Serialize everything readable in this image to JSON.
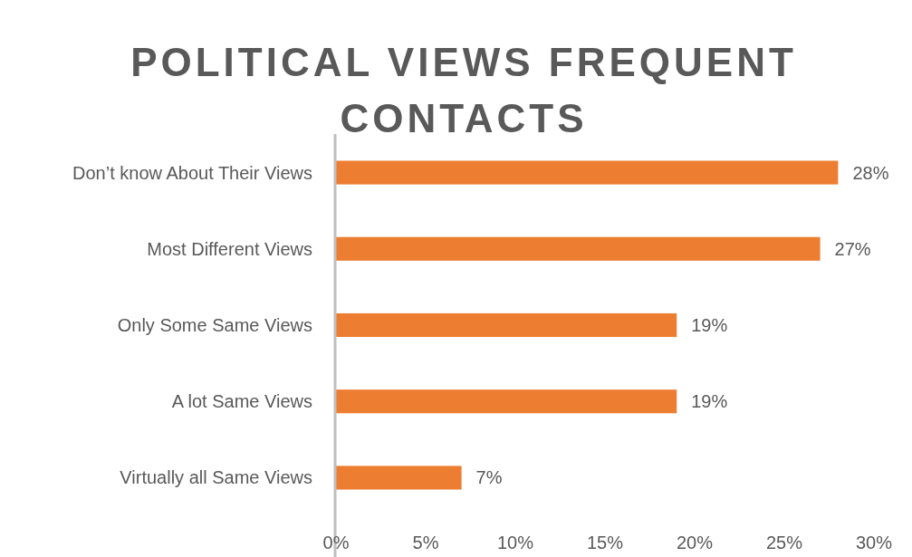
{
  "chart_data": {
    "type": "bar",
    "orientation": "horizontal",
    "title": "POLITICAL VIEWS FREQUENT CONTACTS",
    "categories": [
      "Don’t know About Their Views",
      "Most Different Views",
      "Only Some Same Views",
      "A lot Same Views",
      "Virtually all Same Views"
    ],
    "values": [
      28,
      27,
      19,
      19,
      7
    ],
    "color": "#ed7d31",
    "value_labels": [
      "28%",
      "27%",
      "19%",
      "19%",
      "7%"
    ],
    "xlim": [
      0,
      30
    ],
    "xticks": [
      {
        "value": 0,
        "label": "0%"
      },
      {
        "value": 5,
        "label": "5%"
      },
      {
        "value": 10,
        "label": "10%"
      },
      {
        "value": 15,
        "label": "15%"
      },
      {
        "value": 20,
        "label": "20%"
      },
      {
        "value": 25,
        "label": "25%"
      },
      {
        "value": 30,
        "label": "30%"
      }
    ],
    "grid": false
  }
}
